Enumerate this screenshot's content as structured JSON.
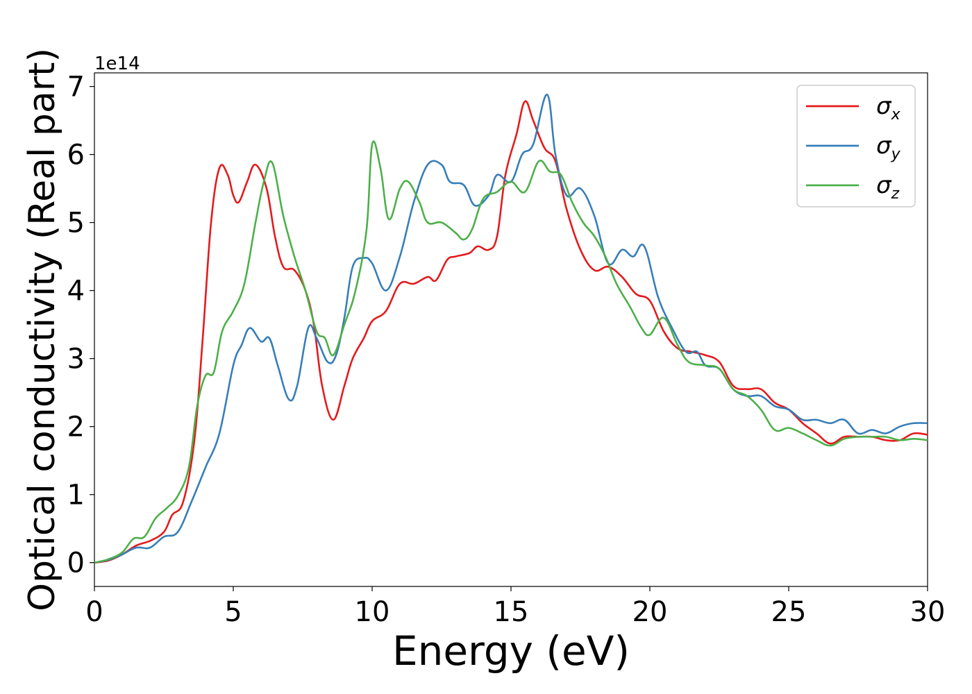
{
  "chart_data": {
    "type": "line",
    "xlabel": "Energy (eV)",
    "ylabel": "Optical conductivity (Real part)",
    "offset_label": "1e14",
    "xlim": [
      0,
      30
    ],
    "ylim": [
      -0.35,
      7.2
    ],
    "x_ticks": [
      0,
      5,
      10,
      15,
      20,
      25,
      30
    ],
    "y_ticks": [
      0,
      1,
      2,
      3,
      4,
      5,
      6,
      7
    ],
    "legend_position": "top-right",
    "series": [
      {
        "name": "σx",
        "symbol": "σ",
        "subscript": "x",
        "color": "#e41a1c",
        "points": [
          [
            0,
            0
          ],
          [
            0.5,
            0.03
          ],
          [
            1,
            0.12
          ],
          [
            1.5,
            0.25
          ],
          [
            2,
            0.32
          ],
          [
            2.5,
            0.45
          ],
          [
            2.8,
            0.7
          ],
          [
            3.2,
            0.9
          ],
          [
            3.6,
            1.8
          ],
          [
            3.9,
            3.3
          ],
          [
            4.2,
            5.0
          ],
          [
            4.5,
            5.8
          ],
          [
            4.8,
            5.7
          ],
          [
            5.0,
            5.4
          ],
          [
            5.2,
            5.3
          ],
          [
            5.5,
            5.6
          ],
          [
            5.8,
            5.85
          ],
          [
            6.2,
            5.5
          ],
          [
            6.5,
            4.8
          ],
          [
            6.8,
            4.35
          ],
          [
            7.2,
            4.3
          ],
          [
            7.6,
            4.0
          ],
          [
            7.9,
            3.5
          ],
          [
            8.2,
            2.6
          ],
          [
            8.6,
            2.1
          ],
          [
            9.0,
            2.6
          ],
          [
            9.3,
            3.0
          ],
          [
            9.7,
            3.3
          ],
          [
            10.0,
            3.55
          ],
          [
            10.5,
            3.7
          ],
          [
            11,
            4.1
          ],
          [
            11.5,
            4.1
          ],
          [
            12,
            4.2
          ],
          [
            12.3,
            4.15
          ],
          [
            12.7,
            4.45
          ],
          [
            13,
            4.5
          ],
          [
            13.5,
            4.55
          ],
          [
            13.8,
            4.65
          ],
          [
            14.2,
            4.6
          ],
          [
            14.5,
            4.8
          ],
          [
            14.8,
            5.7
          ],
          [
            15.2,
            6.3
          ],
          [
            15.5,
            6.78
          ],
          [
            15.8,
            6.5
          ],
          [
            16.2,
            6.1
          ],
          [
            16.6,
            5.9
          ],
          [
            17,
            5.2
          ],
          [
            17.5,
            4.6
          ],
          [
            18,
            4.3
          ],
          [
            18.5,
            4.35
          ],
          [
            19,
            4.2
          ],
          [
            19.5,
            3.95
          ],
          [
            20,
            3.85
          ],
          [
            20.5,
            3.4
          ],
          [
            21,
            3.15
          ],
          [
            21.5,
            3.1
          ],
          [
            22,
            3.05
          ],
          [
            22.5,
            2.95
          ],
          [
            23,
            2.6
          ],
          [
            23.5,
            2.55
          ],
          [
            24,
            2.55
          ],
          [
            24.5,
            2.35
          ],
          [
            25,
            2.25
          ],
          [
            25.5,
            2.05
          ],
          [
            26,
            1.9
          ],
          [
            26.5,
            1.75
          ],
          [
            27,
            1.85
          ],
          [
            27.5,
            1.85
          ],
          [
            28,
            1.85
          ],
          [
            28.5,
            1.8
          ],
          [
            29,
            1.8
          ],
          [
            29.5,
            1.9
          ],
          [
            30,
            1.88
          ]
        ]
      },
      {
        "name": "σy",
        "symbol": "σ",
        "subscript": "y",
        "color": "#377eb8",
        "points": [
          [
            0,
            0
          ],
          [
            0.5,
            0.04
          ],
          [
            1,
            0.12
          ],
          [
            1.5,
            0.22
          ],
          [
            2,
            0.22
          ],
          [
            2.5,
            0.38
          ],
          [
            3,
            0.45
          ],
          [
            3.5,
            0.9
          ],
          [
            4,
            1.4
          ],
          [
            4.5,
            1.9
          ],
          [
            5,
            2.9
          ],
          [
            5.3,
            3.2
          ],
          [
            5.6,
            3.45
          ],
          [
            6,
            3.25
          ],
          [
            6.3,
            3.3
          ],
          [
            6.6,
            2.9
          ],
          [
            7,
            2.4
          ],
          [
            7.3,
            2.6
          ],
          [
            7.7,
            3.45
          ],
          [
            8,
            3.3
          ],
          [
            8.4,
            2.95
          ],
          [
            8.7,
            3.05
          ],
          [
            9,
            3.6
          ],
          [
            9.3,
            4.35
          ],
          [
            9.7,
            4.48
          ],
          [
            10,
            4.4
          ],
          [
            10.5,
            4.0
          ],
          [
            11,
            4.5
          ],
          [
            11.5,
            5.3
          ],
          [
            12,
            5.85
          ],
          [
            12.5,
            5.85
          ],
          [
            12.8,
            5.6
          ],
          [
            13.3,
            5.55
          ],
          [
            13.7,
            5.25
          ],
          [
            14.2,
            5.4
          ],
          [
            14.5,
            5.7
          ],
          [
            15,
            5.6
          ],
          [
            15.4,
            6.0
          ],
          [
            15.8,
            6.15
          ],
          [
            16.3,
            6.88
          ],
          [
            16.6,
            6.0
          ],
          [
            17,
            5.4
          ],
          [
            17.5,
            5.5
          ],
          [
            18,
            5.1
          ],
          [
            18.5,
            4.4
          ],
          [
            19,
            4.6
          ],
          [
            19.4,
            4.5
          ],
          [
            19.8,
            4.65
          ],
          [
            20.3,
            3.9
          ],
          [
            20.8,
            3.45
          ],
          [
            21.3,
            3.1
          ],
          [
            21.7,
            3.1
          ],
          [
            22,
            2.9
          ],
          [
            22.5,
            2.85
          ],
          [
            23,
            2.55
          ],
          [
            23.5,
            2.45
          ],
          [
            24,
            2.45
          ],
          [
            24.5,
            2.3
          ],
          [
            25,
            2.25
          ],
          [
            25.5,
            2.1
          ],
          [
            26,
            2.1
          ],
          [
            26.5,
            2.05
          ],
          [
            27,
            2.1
          ],
          [
            27.5,
            1.9
          ],
          [
            28,
            1.95
          ],
          [
            28.5,
            1.9
          ],
          [
            29,
            2.0
          ],
          [
            29.5,
            2.05
          ],
          [
            30,
            2.05
          ]
        ]
      },
      {
        "name": "σz",
        "symbol": "σ",
        "subscript": "z",
        "color": "#4daf4a",
        "points": [
          [
            0,
            0
          ],
          [
            0.5,
            0.05
          ],
          [
            1,
            0.15
          ],
          [
            1.4,
            0.35
          ],
          [
            1.8,
            0.38
          ],
          [
            2.2,
            0.65
          ],
          [
            2.6,
            0.8
          ],
          [
            3,
            0.98
          ],
          [
            3.4,
            1.4
          ],
          [
            3.7,
            2.3
          ],
          [
            4.0,
            2.75
          ],
          [
            4.3,
            2.8
          ],
          [
            4.6,
            3.4
          ],
          [
            5,
            3.7
          ],
          [
            5.4,
            4.1
          ],
          [
            5.8,
            5.0
          ],
          [
            6.1,
            5.6
          ],
          [
            6.4,
            5.88
          ],
          [
            6.8,
            5.1
          ],
          [
            7.2,
            4.5
          ],
          [
            7.6,
            4.0
          ],
          [
            8.0,
            3.4
          ],
          [
            8.3,
            3.3
          ],
          [
            8.6,
            3.05
          ],
          [
            9,
            3.5
          ],
          [
            9.4,
            4.0
          ],
          [
            9.8,
            4.9
          ],
          [
            10.0,
            6.15
          ],
          [
            10.3,
            5.8
          ],
          [
            10.6,
            5.05
          ],
          [
            11.0,
            5.5
          ],
          [
            11.3,
            5.6
          ],
          [
            11.7,
            5.3
          ],
          [
            12.0,
            5.0
          ],
          [
            12.5,
            5.0
          ],
          [
            13,
            4.85
          ],
          [
            13.3,
            4.75
          ],
          [
            13.6,
            4.9
          ],
          [
            14,
            5.35
          ],
          [
            14.5,
            5.45
          ],
          [
            15,
            5.6
          ],
          [
            15.5,
            5.45
          ],
          [
            16,
            5.9
          ],
          [
            16.4,
            5.75
          ],
          [
            16.8,
            5.7
          ],
          [
            17.2,
            5.3
          ],
          [
            17.6,
            5.0
          ],
          [
            18,
            4.8
          ],
          [
            18.4,
            4.5
          ],
          [
            18.8,
            4.1
          ],
          [
            19.3,
            3.75
          ],
          [
            19.7,
            3.45
          ],
          [
            20,
            3.35
          ],
          [
            20.5,
            3.6
          ],
          [
            21,
            3.2
          ],
          [
            21.4,
            2.95
          ],
          [
            22,
            2.9
          ],
          [
            22.5,
            2.85
          ],
          [
            23,
            2.55
          ],
          [
            23.5,
            2.45
          ],
          [
            24,
            2.25
          ],
          [
            24.5,
            1.95
          ],
          [
            25,
            1.98
          ],
          [
            25.5,
            1.9
          ],
          [
            26,
            1.8
          ],
          [
            26.5,
            1.72
          ],
          [
            27,
            1.82
          ],
          [
            27.5,
            1.85
          ],
          [
            28,
            1.85
          ],
          [
            28.5,
            1.85
          ],
          [
            29,
            1.8
          ],
          [
            29.5,
            1.82
          ],
          [
            30,
            1.8
          ]
        ]
      }
    ]
  }
}
